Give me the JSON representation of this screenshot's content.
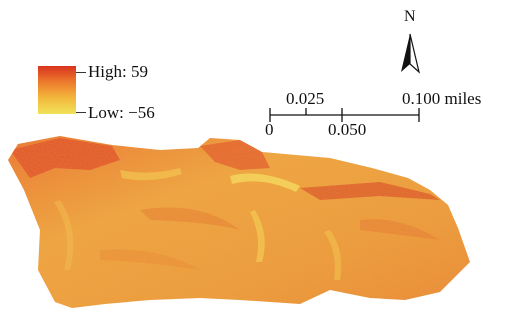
{
  "legend": {
    "high_label": "High: 59",
    "low_label": "Low: −56",
    "high_value": 59,
    "low_value": -56,
    "ramp_colors": [
      "#d9331e",
      "#ec7a2c",
      "#f3b83d",
      "#f0e25a"
    ]
  },
  "north_arrow": {
    "label": "N",
    "icon": "north-arrow-icon"
  },
  "scale_bar": {
    "labels_top": [
      "0.025",
      "0.100 miles"
    ],
    "labels_bottom": [
      "0",
      "0.050"
    ],
    "units": "miles"
  },
  "raster": {
    "base_color": "#eea23a",
    "highlight_color": "#f3d04f",
    "shadow_color": "#d9531f"
  }
}
